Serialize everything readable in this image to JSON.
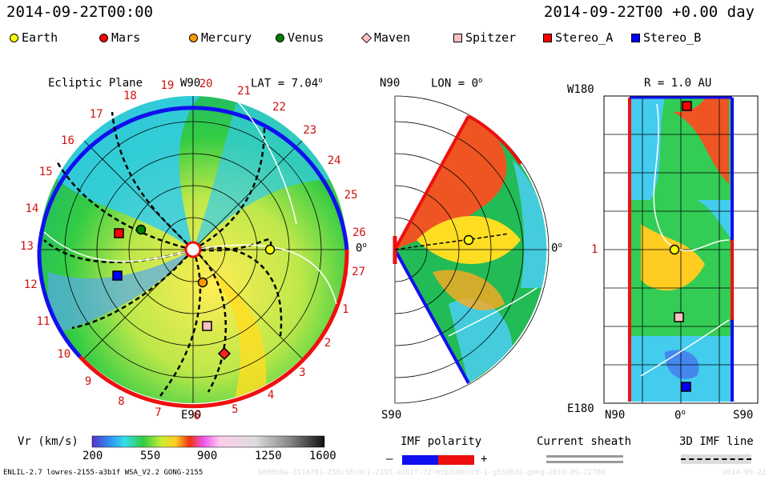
{
  "header": {
    "date_left": "2014-09-22T00:00",
    "date_right": "2014-09-22T00 +0.00 day"
  },
  "legend": [
    {
      "label": "Earth",
      "shape": "circle",
      "color": "#ffff00"
    },
    {
      "label": "Mars",
      "shape": "circle",
      "color": "#ff0000"
    },
    {
      "label": "Mercury",
      "shape": "circle",
      "color": "#ff9900"
    },
    {
      "label": "Venus",
      "shape": "circle",
      "color": "#008000"
    },
    {
      "label": "Maven",
      "shape": "diamond",
      "color": "#ffc0c0"
    },
    {
      "label": "Spitzer",
      "shape": "square",
      "color": "#ffc0c0"
    },
    {
      "label": "Stereo_A",
      "shape": "square",
      "color": "#ff0000"
    },
    {
      "label": "Stereo_B",
      "shape": "square",
      "color": "#0000ff"
    }
  ],
  "ecliptic": {
    "title": "Ecliptic Plane",
    "top": "W90",
    "bottom": "E90",
    "right": "0",
    "lat_label": "LAT = 7.04",
    "lat_sup": "o",
    "carrington": [
      "19",
      "20",
      "21",
      "22",
      "23",
      "24",
      "25",
      "26",
      "27",
      "1",
      "2",
      "3",
      "4",
      "5",
      "6",
      "7",
      "8",
      "9",
      "10",
      "11",
      "12",
      "13",
      "14",
      "15",
      "16",
      "17",
      "18"
    ]
  },
  "meridional": {
    "top": "N90",
    "bottom": "S90",
    "right": "0",
    "lon_label": "LON = 0",
    "lon_sup": "o"
  },
  "radial": {
    "title": "R = 1.0 AU",
    "top": "W180",
    "bottom": "E180",
    "mid": "1",
    "x_left": "N90",
    "x_mid": "0",
    "x_right": "S90"
  },
  "colorbar": {
    "label": "Vr (km/s)",
    "ticks": [
      "200",
      "550",
      "900",
      "1250",
      "1600"
    ]
  },
  "imf": {
    "title": "IMF polarity",
    "minus": "–",
    "plus": "+"
  },
  "current_sheath": {
    "title": "Current sheath"
  },
  "imf3d": {
    "title": "3D IMF line"
  },
  "footer": {
    "model": "ENLIL-2.7 lowres-2155-a3b1f WSA_V2.2 GONG-2155",
    "run_id": "b800b0a-3114781-258c58c9c1-2155-a3b1f-32-mcp1umn1cd-1-g53d6d2-gong-2014-09-22T00",
    "date": "2014-09-22"
  }
}
